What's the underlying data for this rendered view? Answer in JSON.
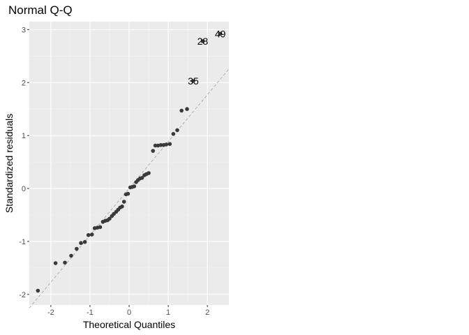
{
  "chart_data": {
    "type": "scatter",
    "title": "Normal Q-Q",
    "xlabel": "Theoretical Quantiles",
    "ylabel": "Standardized residuals",
    "xlim": [
      -2.55,
      2.55
    ],
    "ylim": [
      -2.2,
      3.15
    ],
    "x_ticks": [
      -2,
      -1,
      0,
      1,
      2
    ],
    "y_ticks": [
      -2,
      -1,
      0,
      1,
      2,
      3
    ],
    "x_tick_labels": [
      "-2",
      "-1",
      "0",
      "1",
      "2"
    ],
    "y_tick_labels": [
      "-2",
      "-1",
      "0",
      "1",
      "2",
      "3"
    ],
    "grid": true,
    "legend": "none",
    "colors": {
      "panel": "#ebebeb",
      "grid_major": "#ffffff",
      "grid_minor": "#f4f4f4",
      "point": "#3a3a3a",
      "reference_line": "#b3b3b3"
    },
    "reference_line": {
      "slope": 0.885,
      "intercept": 0.0
    },
    "points": [
      {
        "x": -2.33,
        "y": -1.93
      },
      {
        "x": -1.88,
        "y": -1.41
      },
      {
        "x": -1.64,
        "y": -1.4
      },
      {
        "x": -1.48,
        "y": -1.27
      },
      {
        "x": -1.34,
        "y": -1.14
      },
      {
        "x": -1.23,
        "y": -1.03
      },
      {
        "x": -1.13,
        "y": -1.01
      },
      {
        "x": -1.04,
        "y": -0.88
      },
      {
        "x": -0.95,
        "y": -0.87
      },
      {
        "x": -0.88,
        "y": -0.75
      },
      {
        "x": -0.81,
        "y": -0.74
      },
      {
        "x": -0.74,
        "y": -0.73
      },
      {
        "x": -0.67,
        "y": -0.63
      },
      {
        "x": -0.61,
        "y": -0.61
      },
      {
        "x": -0.55,
        "y": -0.6
      },
      {
        "x": -0.5,
        "y": -0.57
      },
      {
        "x": -0.44,
        "y": -0.52
      },
      {
        "x": -0.39,
        "y": -0.48
      },
      {
        "x": -0.33,
        "y": -0.44
      },
      {
        "x": -0.28,
        "y": -0.4
      },
      {
        "x": -0.23,
        "y": -0.36
      },
      {
        "x": -0.18,
        "y": -0.34
      },
      {
        "x": -0.13,
        "y": -0.25
      },
      {
        "x": -0.08,
        "y": -0.11
      },
      {
        "x": -0.03,
        "y": -0.1
      },
      {
        "x": 0.03,
        "y": 0.02
      },
      {
        "x": 0.08,
        "y": 0.03
      },
      {
        "x": 0.13,
        "y": 0.04
      },
      {
        "x": 0.18,
        "y": 0.12
      },
      {
        "x": 0.23,
        "y": 0.16
      },
      {
        "x": 0.28,
        "y": 0.19
      },
      {
        "x": 0.33,
        "y": 0.2
      },
      {
        "x": 0.39,
        "y": 0.25
      },
      {
        "x": 0.44,
        "y": 0.27
      },
      {
        "x": 0.5,
        "y": 0.29
      },
      {
        "x": 0.61,
        "y": 0.71
      },
      {
        "x": 0.67,
        "y": 0.81
      },
      {
        "x": 0.74,
        "y": 0.81
      },
      {
        "x": 0.81,
        "y": 0.82
      },
      {
        "x": 0.88,
        "y": 0.82
      },
      {
        "x": 0.95,
        "y": 0.83
      },
      {
        "x": 1.04,
        "y": 0.84
      },
      {
        "x": 1.13,
        "y": 1.03
      },
      {
        "x": 1.23,
        "y": 1.1
      },
      {
        "x": 1.34,
        "y": 1.47
      },
      {
        "x": 1.48,
        "y": 1.5
      },
      {
        "x": 1.64,
        "y": 2.03
      },
      {
        "x": 1.88,
        "y": 2.78
      },
      {
        "x": 2.33,
        "y": 2.92
      }
    ],
    "labels": [
      {
        "text": "35",
        "x": 1.64,
        "y": 2.03
      },
      {
        "text": "28",
        "x": 1.88,
        "y": 2.78
      },
      {
        "text": "49",
        "x": 2.33,
        "y": 2.92
      }
    ]
  }
}
